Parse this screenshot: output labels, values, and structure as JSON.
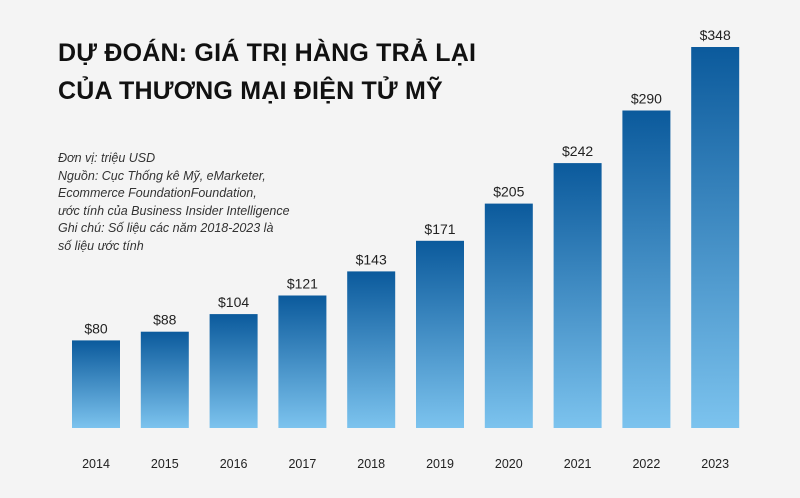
{
  "header": {
    "title_line1": "DỰ ĐOÁN: GIÁ TRỊ HÀNG TRẢ LẠI",
    "title_line2": "CỦA THƯƠNG MẠI ĐIỆN TỬ MỸ"
  },
  "notes": [
    "Đơn vị: triệu USD",
    "Nguồn: Cục Thống kê Mỹ, eMarketer,",
    "Ecommerce FoundationFoundation,",
    "ước tính của Business Insider Intelligence",
    "Ghi chú: Số liệu các năm 2018-2023 là",
    "số liệu ước tính"
  ],
  "colors": {
    "bar_top": "#0b5a9c",
    "bar_bottom": "#7cc3ee",
    "background": "#f4f4f4"
  },
  "chart_data": {
    "type": "bar",
    "title": "DỰ ĐOÁN: GIÁ TRỊ HÀNG TRẢ LẠI CỦA THƯƠNG MẠI ĐIỆN TỬ MỸ",
    "categories": [
      "2014",
      "2015",
      "2016",
      "2017",
      "2018",
      "2019",
      "2020",
      "2021",
      "2022",
      "2023"
    ],
    "values": [
      80,
      88,
      104,
      121,
      143,
      171,
      205,
      242,
      290,
      348
    ],
    "value_labels": [
      "$80",
      "$88",
      "$104",
      "$121",
      "$143",
      "$171",
      "$205",
      "$242",
      "$290",
      "$348"
    ],
    "ylim": [
      0,
      348
    ],
    "grid": false,
    "legend": "none"
  }
}
